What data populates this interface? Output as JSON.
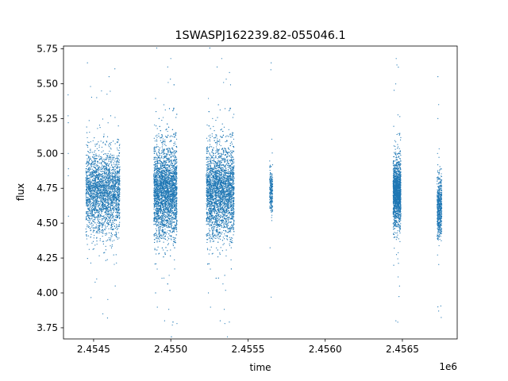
{
  "chart_data": {
    "type": "scatter",
    "title": "1SWASPJ162239.82-055046.1",
    "xlabel": "time",
    "ylabel": "flux",
    "x_offset_label": "1e6",
    "xlim": [
      2454305,
      2456855
    ],
    "ylim": [
      3.67,
      5.77
    ],
    "x_ticks": [
      2454500,
      2455000,
      2455500,
      2456000,
      2456500
    ],
    "x_tick_labels": [
      "2.4545",
      "2.4550",
      "2.4555",
      "2.4560",
      "2.4565"
    ],
    "y_ticks": [
      3.75,
      4.0,
      4.25,
      4.5,
      4.75,
      5.0,
      5.25,
      5.5,
      5.75
    ],
    "y_tick_labels": [
      "3.75",
      "4.00",
      "4.25",
      "4.50",
      "4.75",
      "5.00",
      "5.25",
      "5.50",
      "5.75"
    ],
    "grid": false,
    "marker_color": "#1f77b4",
    "series": [
      {
        "values": [
          {
            "x": 2454335,
            "y": 5.42
          },
          {
            "x": 2454335,
            "y": 5.27
          },
          {
            "x": 2454336,
            "y": 5.22
          },
          {
            "x": 2454336,
            "y": 5.0
          },
          {
            "x": 2454337,
            "y": 4.89
          },
          {
            "x": 2454336,
            "y": 4.84
          },
          {
            "x": 2454337,
            "y": 4.55
          },
          {
            "x": 2454460,
            "y": 5.65
          },
          {
            "x": 2454480,
            "y": 5.48
          },
          {
            "x": 2454520,
            "y": 5.4
          },
          {
            "x": 2454600,
            "y": 5.55
          },
          {
            "x": 2454560,
            "y": 3.85
          },
          {
            "x": 2454590,
            "y": 3.82
          },
          {
            "x": 2454520,
            "y": 4.1
          },
          {
            "x": 2454640,
            "y": 4.05
          },
          {
            "x": 2454960,
            "y": 3.8
          },
          {
            "x": 2455000,
            "y": 5.68
          },
          {
            "x": 2455040,
            "y": 3.78
          },
          {
            "x": 2455010,
            "y": 3.77
          },
          {
            "x": 2454980,
            "y": 5.62
          },
          {
            "x": 2455300,
            "y": 5.62
          },
          {
            "x": 2455330,
            "y": 5.68
          },
          {
            "x": 2455350,
            "y": 3.78
          },
          {
            "x": 2455380,
            "y": 5.58
          },
          {
            "x": 2455320,
            "y": 3.8
          },
          {
            "x": 2455650,
            "y": 5.65
          },
          {
            "x": 2455648,
            "y": 5.6
          },
          {
            "x": 2455650,
            "y": 3.97
          },
          {
            "x": 2456460,
            "y": 5.68
          },
          {
            "x": 2456458,
            "y": 3.8
          },
          {
            "x": 2456470,
            "y": 3.79
          },
          {
            "x": 2456730,
            "y": 5.55
          },
          {
            "x": 2456735,
            "y": 5.35
          },
          {
            "x": 2456730,
            "y": 5.25
          },
          {
            "x": 2456735,
            "y": 3.87
          },
          {
            "x": 2456730,
            "y": 3.9
          }
        ],
        "clusters": [
          {
            "x_range": [
              2454450,
              2454670
            ],
            "center": 4.72,
            "spread": 0.38,
            "count": 2600
          },
          {
            "x_range": [
              2454890,
              2455040
            ],
            "center": 4.73,
            "spread": 0.42,
            "count": 3400
          },
          {
            "x_range": [
              2455230,
              2455410
            ],
            "center": 4.73,
            "spread": 0.42,
            "count": 3400
          },
          {
            "x_range": [
              2455640,
              2455660
            ],
            "center": 4.72,
            "spread": 0.2,
            "count": 250
          },
          {
            "x_range": [
              2456440,
              2456490
            ],
            "center": 4.72,
            "spread": 0.3,
            "count": 1600
          },
          {
            "x_range": [
              2456725,
              2456755
            ],
            "center": 4.62,
            "spread": 0.28,
            "count": 600
          }
        ]
      }
    ]
  }
}
